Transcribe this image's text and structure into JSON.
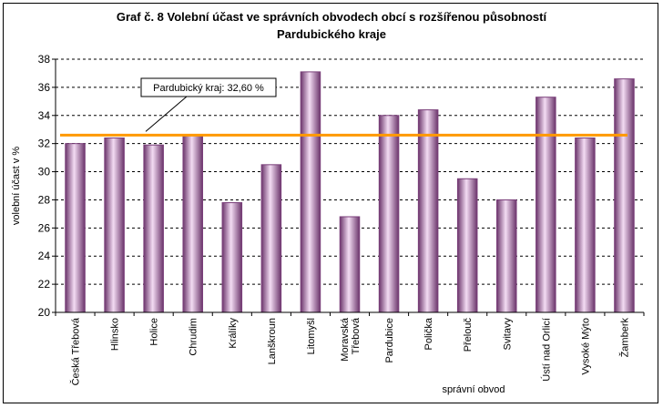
{
  "chart_data": {
    "type": "bar",
    "title": "Graf č. 8 Volební účast ve správních obvodech obcí s rozšířenou působností",
    "subtitle": "Pardubického kraje",
    "xlabel": "správní obvod",
    "ylabel": "volební účast v %",
    "ylim": [
      20,
      38
    ],
    "yticks": [
      20,
      22,
      24,
      26,
      28,
      30,
      32,
      34,
      36,
      38
    ],
    "grid": true,
    "categories": [
      [
        "Česká Třebová"
      ],
      [
        "Hlinsko"
      ],
      [
        "Holice"
      ],
      [
        "Chrudim"
      ],
      [
        "Králíky"
      ],
      [
        "Lanškroun"
      ],
      [
        "Litomyšl"
      ],
      [
        "Moravská",
        "Třebová"
      ],
      [
        "Pardubice"
      ],
      [
        "Polička"
      ],
      [
        "Přelouč"
      ],
      [
        "Svitavy"
      ],
      [
        "Ústí nad Orlicí"
      ],
      [
        "Vysoké Mýto"
      ],
      [
        "Žamberk"
      ]
    ],
    "values": [
      32.0,
      32.4,
      31.9,
      32.6,
      27.8,
      30.5,
      37.1,
      26.8,
      34.0,
      34.4,
      29.5,
      28.0,
      35.3,
      32.4,
      36.6
    ],
    "reference_line": {
      "value": 32.6,
      "label": "Pardubický kraj: 32,60 %",
      "color": "#ff9900"
    },
    "bar_colors": {
      "edge": "#7a3f7a",
      "light": "#f3dcf3",
      "mid": "#c9a0c9",
      "dark": "#6b356b"
    }
  }
}
